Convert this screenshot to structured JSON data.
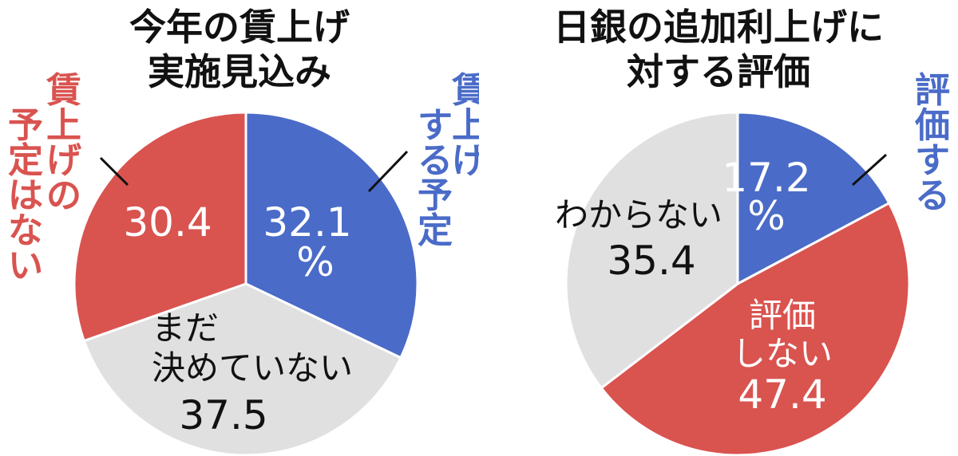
{
  "chart_data": [
    {
      "type": "pie",
      "title": "今年の賃上げ実施見込み",
      "title_lines": [
        "今年の賃上げ",
        "実施見込み"
      ],
      "unit": "%",
      "slices": [
        {
          "name": "賃上げする予定",
          "value": 32.1,
          "color": "#4a6bc8",
          "label_lines": [
            "賃上げ",
            "する予定"
          ],
          "value_text": "32.1",
          "unit_text": "%"
        },
        {
          "name": "まだ決めていない",
          "value": 37.5,
          "color": "#e0e0e0",
          "label_lines": [
            "まだ",
            "決めていない"
          ],
          "value_text": "37.5"
        },
        {
          "name": "賃上げの予定はない",
          "value": 30.4,
          "color": "#d9534f",
          "label_lines": [
            "賃上げの",
            "予定はない"
          ],
          "value_text": "30.4"
        }
      ]
    },
    {
      "type": "pie",
      "title": "日銀の追加利上げに対する評価",
      "title_lines": [
        "日銀の追加利上げに",
        "対する評価"
      ],
      "unit": "%",
      "slices": [
        {
          "name": "評価する",
          "value": 17.2,
          "color": "#4a6bc8",
          "label_lines": [
            "評価する"
          ],
          "value_text": "17.2",
          "unit_text": "%"
        },
        {
          "name": "評価しない",
          "value": 47.4,
          "color": "#d9534f",
          "label_lines": [
            "評価",
            "しない"
          ],
          "value_text": "47.4"
        },
        {
          "name": "わからない",
          "value": 35.4,
          "color": "#e0e0e0",
          "label_lines": [
            "わからない"
          ],
          "value_text": "35.4"
        }
      ]
    }
  ]
}
